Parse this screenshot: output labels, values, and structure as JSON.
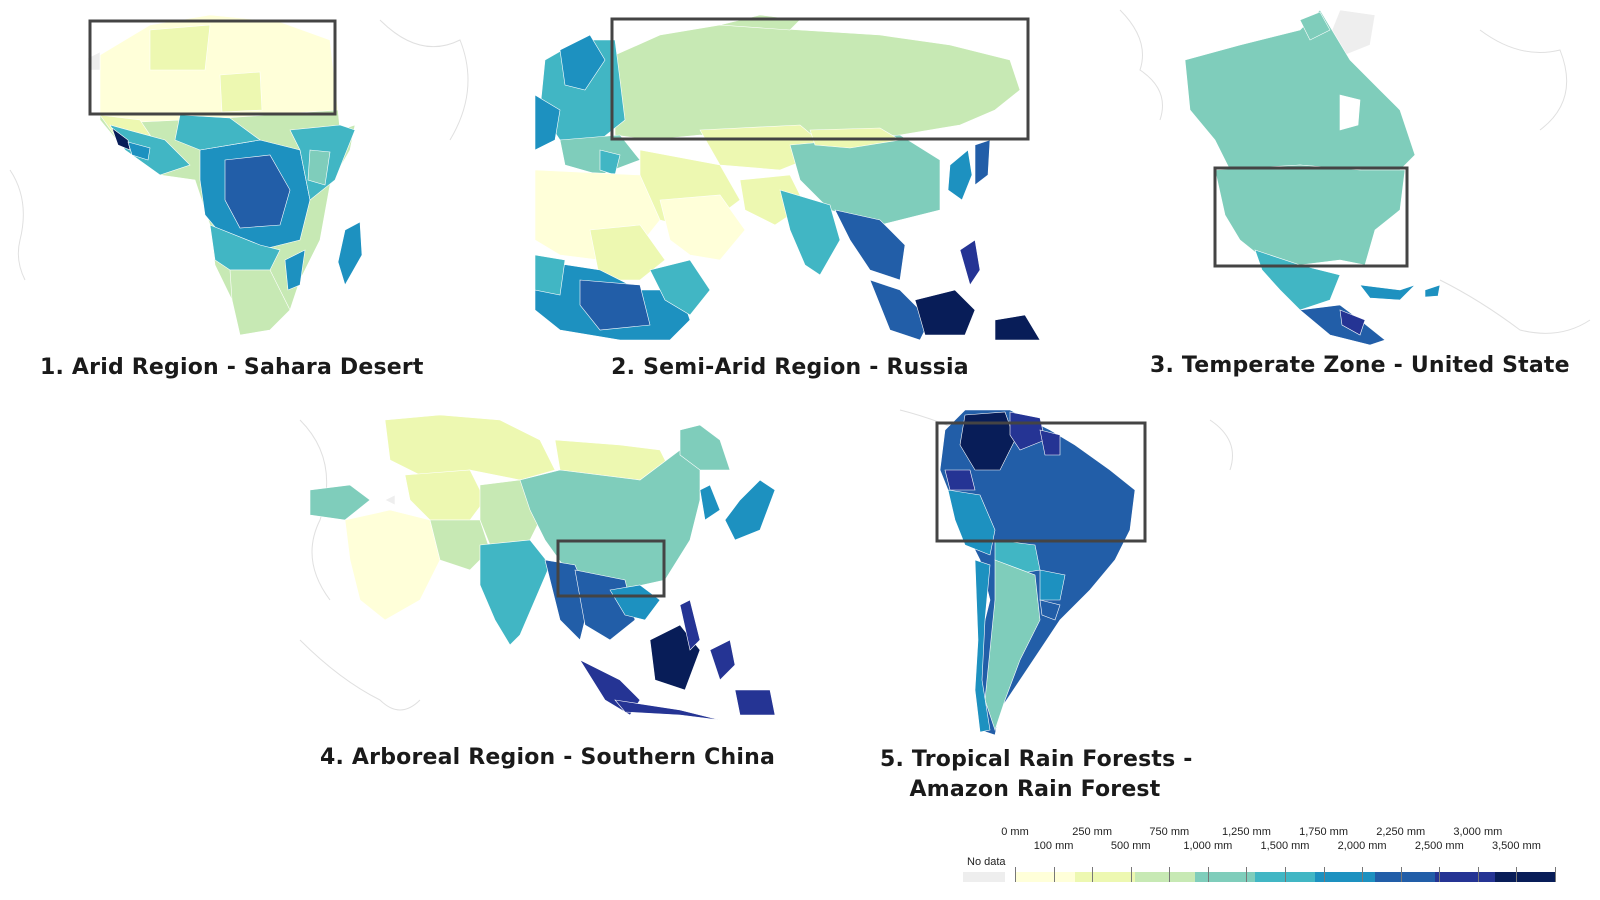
{
  "panels": [
    {
      "caption": [
        "1. Arid Region - Sahara Desert"
      ]
    },
    {
      "caption": [
        "2. Semi-Arid Region - Russia"
      ]
    },
    {
      "caption": [
        "3. Temperate Zone - United State"
      ]
    },
    {
      "caption": [
        "4. Arboreal Region - Southern China"
      ]
    },
    {
      "caption": [
        "5. Tropical Rain Forests -",
        "Amazon Rain Forest"
      ]
    }
  ],
  "legend": {
    "no_data_label": "No data",
    "no_data_color": "#eeeeee",
    "top_labels": [
      "0 mm",
      "250 mm",
      "750 mm",
      "1,250 mm",
      "1,750 mm",
      "2,250 mm",
      "3,000 mm"
    ],
    "bottom_labels": [
      "100 mm",
      "500 mm",
      "1,000 mm",
      "1,500 mm",
      "2,000 mm",
      "2,500 mm",
      "3,500 mm"
    ],
    "colors": [
      "#ffffd9",
      "#edf8b1",
      "#c7e9b4",
      "#7fcdbb",
      "#41b6c4",
      "#1d91c0",
      "#225ea8",
      "#253494",
      "#081d58"
    ]
  },
  "colors": {
    "highlight_box": "#444444",
    "background_outline": "#dddddd"
  }
}
